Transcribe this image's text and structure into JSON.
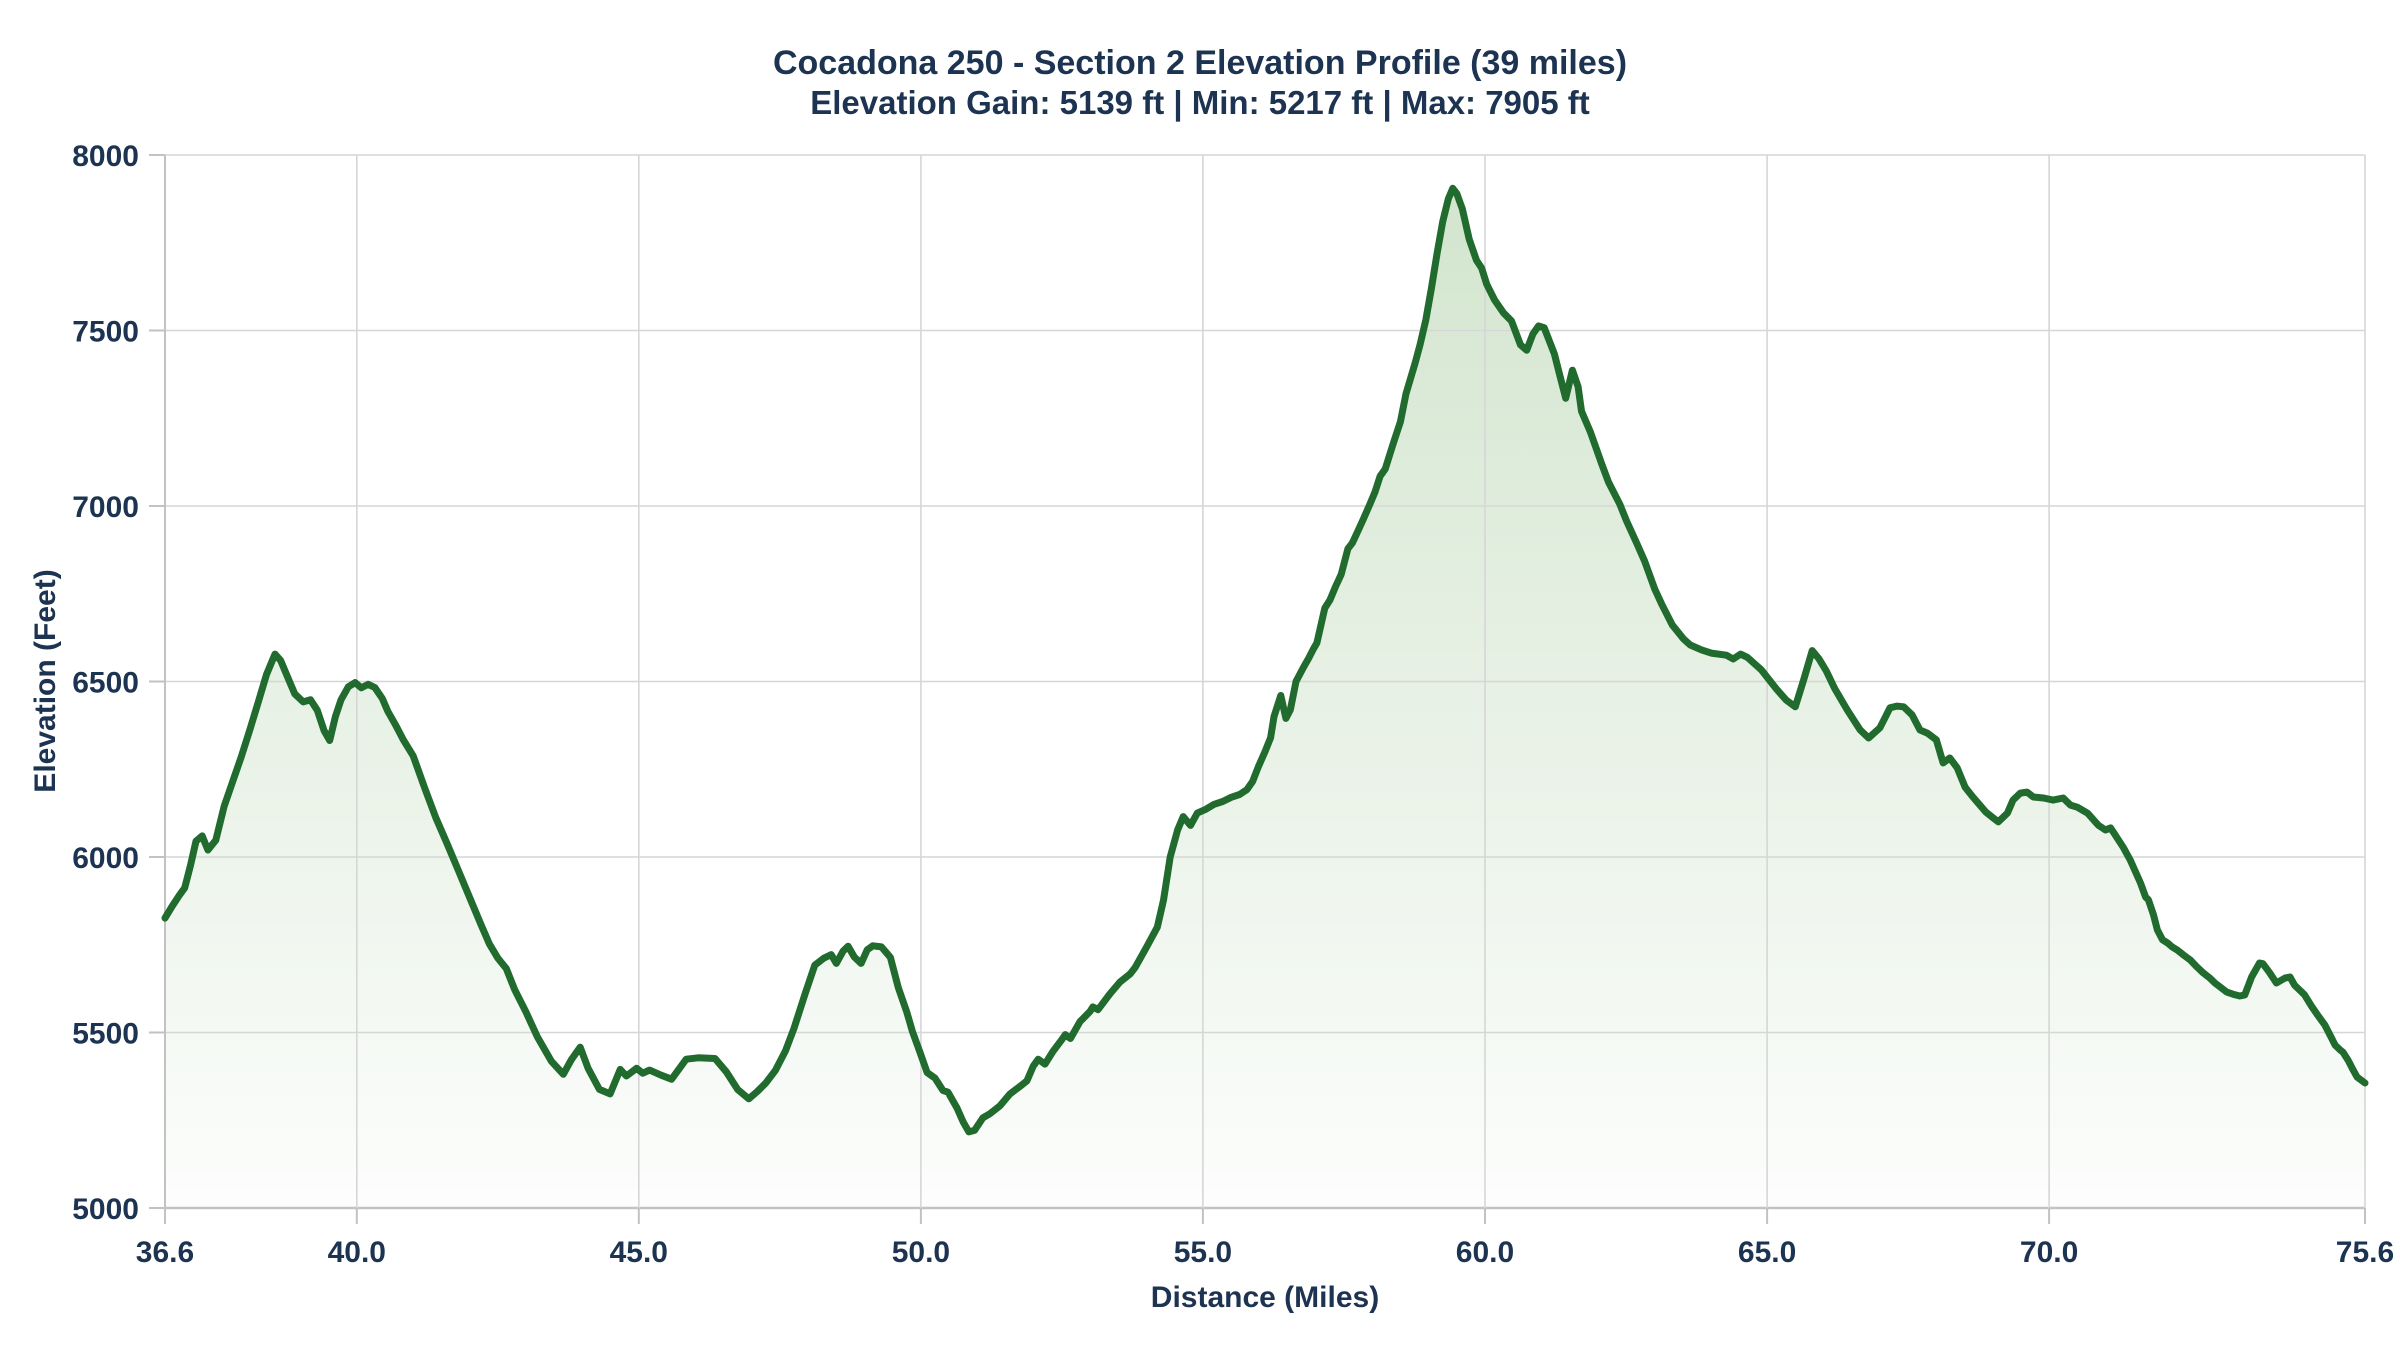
{
  "colors": {
    "line": "#216b2e",
    "fill_top": "#cde2c8",
    "fill_bottom": "#fcfdfc",
    "grid": "#d6d6d6",
    "axis": "#c2c2c2",
    "text": "#1c3351",
    "background": "#ffffff"
  },
  "chart_data": {
    "type": "area",
    "title": "Cocadona 250 - Section 2 Elevation Profile (39 miles)",
    "subtitle": "Elevation Gain: 5139 ft | Min: 5217 ft | Max: 7905 ft",
    "xlabel": "Distance (Miles)",
    "ylabel": "Elevation (Feet)",
    "xlim": [
      36.6,
      75.6
    ],
    "ylim": [
      5000,
      8000
    ],
    "grid": true,
    "legend": false,
    "stats": {
      "elevation_gain_ft": 5139,
      "min_ft": 5217,
      "max_ft": 7905,
      "section_miles": 39
    },
    "x_ticks": [
      36.6,
      40.0,
      45.0,
      50.0,
      55.0,
      60.0,
      65.0,
      70.0,
      75.6
    ],
    "x_tick_labels": [
      "36.6",
      "40.0",
      "45.0",
      "50.0",
      "55.0",
      "60.0",
      "65.0",
      "70.0",
      "75.6"
    ],
    "y_ticks": [
      5000,
      5500,
      6000,
      6500,
      7000,
      7500,
      8000
    ],
    "y_tick_labels": [
      "5000",
      "5500",
      "6000",
      "6500",
      "7000",
      "7500",
      "8000"
    ],
    "series": [
      {
        "name": "elevation-profile",
        "x": [
          36.6,
          36.72,
          36.85,
          36.95,
          37.05,
          37.15,
          37.26,
          37.36,
          37.5,
          37.65,
          37.8,
          37.95,
          38.1,
          38.25,
          38.4,
          38.55,
          38.65,
          38.78,
          38.9,
          39.05,
          39.18,
          39.3,
          39.42,
          39.52,
          39.62,
          39.72,
          39.85,
          39.97,
          40.08,
          40.2,
          40.32,
          40.45,
          40.55,
          40.68,
          40.82,
          41.0,
          41.2,
          41.4,
          41.6,
          41.8,
          42.0,
          42.2,
          42.35,
          42.5,
          42.65,
          42.8,
          43.0,
          43.2,
          43.45,
          43.66,
          43.8,
          43.96,
          44.1,
          44.3,
          44.49,
          44.67,
          44.78,
          44.96,
          45.07,
          45.19,
          45.4,
          45.58,
          45.84,
          46.05,
          46.35,
          46.55,
          46.75,
          46.95,
          47.1,
          47.25,
          47.42,
          47.6,
          47.75,
          47.95,
          48.12,
          48.28,
          48.41,
          48.5,
          48.62,
          48.71,
          48.82,
          48.94,
          49.05,
          49.15,
          49.3,
          49.46,
          49.6,
          49.75,
          49.85,
          49.99,
          50.11,
          50.25,
          50.39,
          50.48,
          50.64,
          50.75,
          50.85,
          50.95,
          51.1,
          51.22,
          51.4,
          51.58,
          51.76,
          51.88,
          51.99,
          52.08,
          52.2,
          52.34,
          52.5,
          52.56,
          52.65,
          52.82,
          53.0,
          53.05,
          53.14,
          53.35,
          53.53,
          53.71,
          53.8,
          54.0,
          54.19,
          54.3,
          54.42,
          54.55,
          54.65,
          54.78,
          54.9,
          55.05,
          55.2,
          55.35,
          55.5,
          55.65,
          55.78,
          55.88,
          55.98,
          56.1,
          56.2,
          56.26,
          56.38,
          56.47,
          56.55,
          56.65,
          56.78,
          56.88,
          56.95,
          57.02,
          57.16,
          57.25,
          57.35,
          57.45,
          57.57,
          57.65,
          57.75,
          57.85,
          57.96,
          58.05,
          58.14,
          58.23,
          58.37,
          58.5,
          58.6,
          58.76,
          58.85,
          58.95,
          59.05,
          59.15,
          59.25,
          59.35,
          59.43,
          59.5,
          59.6,
          59.72,
          59.85,
          59.94,
          60.03,
          60.17,
          60.33,
          60.47,
          60.63,
          60.74,
          60.85,
          60.95,
          61.05,
          61.23,
          61.33,
          61.43,
          61.55,
          61.65,
          61.71,
          61.87,
          62.07,
          62.19,
          62.39,
          62.51,
          62.69,
          62.83,
          63.01,
          63.13,
          63.32,
          63.52,
          63.64,
          63.84,
          64.01,
          64.28,
          64.4,
          64.53,
          64.65,
          64.9,
          65.17,
          65.34,
          65.5,
          65.65,
          65.8,
          65.92,
          66.05,
          66.2,
          66.42,
          66.65,
          66.8,
          67.0,
          67.18,
          67.3,
          67.42,
          67.57,
          67.71,
          67.84,
          68.0,
          68.12,
          68.24,
          68.37,
          68.51,
          68.65,
          68.74,
          68.88,
          69.01,
          69.1,
          69.26,
          69.36,
          69.49,
          69.61,
          69.72,
          69.9,
          70.07,
          70.25,
          70.38,
          70.5,
          70.68,
          70.87,
          71.0,
          71.09,
          71.32,
          71.44,
          71.62,
          71.71,
          71.76,
          71.85,
          71.92,
          72.01,
          72.1,
          72.18,
          72.27,
          72.38,
          72.5,
          72.62,
          72.73,
          72.85,
          72.94,
          73.03,
          73.15,
          73.26,
          73.38,
          73.47,
          73.59,
          73.73,
          73.79,
          73.91,
          74.03,
          74.18,
          74.27,
          74.35,
          74.44,
          74.53,
          74.66,
          74.76,
          74.89,
          74.98,
          75.07,
          75.16,
          75.21,
          75.3,
          75.39,
          75.46,
          75.6
        ],
        "y": [
          5826,
          5858,
          5890,
          5912,
          5975,
          6045,
          6060,
          6020,
          6048,
          6145,
          6215,
          6285,
          6360,
          6440,
          6520,
          6578,
          6560,
          6510,
          6465,
          6442,
          6448,
          6418,
          6360,
          6332,
          6400,
          6448,
          6485,
          6497,
          6482,
          6492,
          6483,
          6452,
          6415,
          6378,
          6335,
          6288,
          6198,
          6112,
          6038,
          5962,
          5885,
          5808,
          5752,
          5712,
          5682,
          5622,
          5558,
          5488,
          5418,
          5381,
          5422,
          5458,
          5398,
          5338,
          5325,
          5395,
          5376,
          5398,
          5384,
          5393,
          5378,
          5367,
          5424,
          5428,
          5426,
          5388,
          5338,
          5311,
          5332,
          5356,
          5392,
          5448,
          5512,
          5612,
          5692,
          5712,
          5722,
          5697,
          5732,
          5746,
          5715,
          5697,
          5736,
          5747,
          5744,
          5714,
          5628,
          5558,
          5503,
          5441,
          5386,
          5370,
          5335,
          5330,
          5285,
          5245,
          5217,
          5221,
          5257,
          5268,
          5291,
          5325,
          5347,
          5362,
          5404,
          5424,
          5410,
          5446,
          5480,
          5494,
          5483,
          5531,
          5560,
          5573,
          5565,
          5610,
          5644,
          5667,
          5686,
          5743,
          5800,
          5877,
          6000,
          6077,
          6115,
          6090,
          6125,
          6136,
          6150,
          6158,
          6170,
          6178,
          6192,
          6215,
          6256,
          6300,
          6340,
          6400,
          6460,
          6395,
          6420,
          6500,
          6540,
          6568,
          6590,
          6610,
          6709,
          6732,
          6770,
          6805,
          6878,
          6895,
          6930,
          6965,
          7005,
          7040,
          7085,
          7105,
          7177,
          7240,
          7320,
          7407,
          7460,
          7530,
          7620,
          7720,
          7810,
          7875,
          7905,
          7890,
          7846,
          7760,
          7700,
          7678,
          7632,
          7587,
          7550,
          7527,
          7459,
          7444,
          7490,
          7513,
          7508,
          7433,
          7370,
          7307,
          7387,
          7340,
          7270,
          7210,
          7119,
          7068,
          7005,
          6957,
          6894,
          6843,
          6763,
          6721,
          6661,
          6621,
          6604,
          6590,
          6581,
          6575,
          6564,
          6578,
          6569,
          6533,
          6478,
          6447,
          6428,
          6505,
          6588,
          6565,
          6530,
          6480,
          6419,
          6362,
          6339,
          6368,
          6425,
          6430,
          6428,
          6405,
          6362,
          6353,
          6334,
          6268,
          6282,
          6254,
          6199,
          6171,
          6154,
          6128,
          6111,
          6100,
          6125,
          6162,
          6182,
          6185,
          6171,
          6168,
          6162,
          6168,
          6148,
          6142,
          6125,
          6091,
          6077,
          6083,
          6026,
          5991,
          5926,
          5886,
          5878,
          5835,
          5792,
          5764,
          5755,
          5744,
          5735,
          5721,
          5707,
          5687,
          5670,
          5655,
          5641,
          5630,
          5615,
          5609,
          5604,
          5607,
          5658,
          5698,
          5696,
          5670,
          5641,
          5655,
          5658,
          5635,
          5621,
          5607,
          5573,
          5550,
          5521,
          5493,
          5464,
          5450,
          5444,
          5421,
          5393,
          5373,
          5356
        ]
      }
    ]
  }
}
